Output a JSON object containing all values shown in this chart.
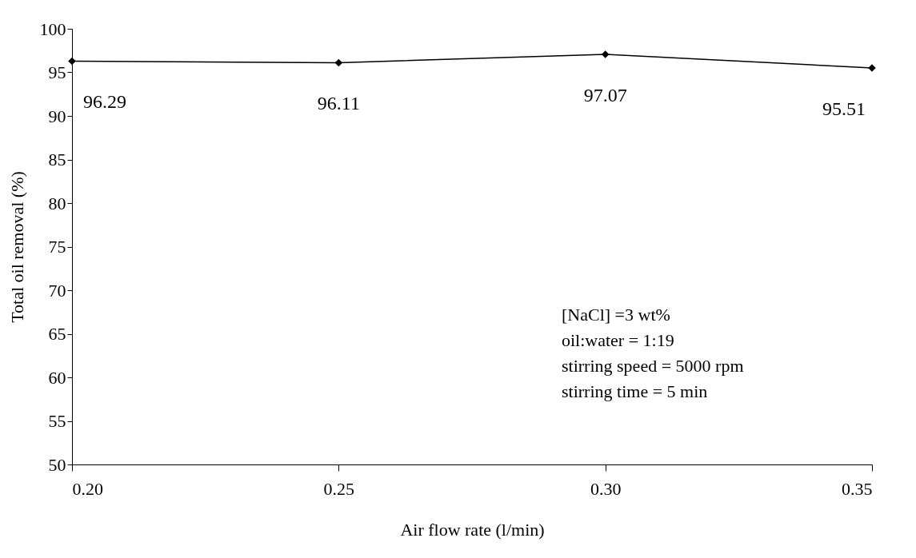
{
  "chart_data": {
    "type": "line",
    "xlabel": "Air flow rate (l/min)",
    "ylabel": "Total oil removal (%)",
    "x": [
      0.2,
      0.25,
      0.3,
      0.35
    ],
    "series": [
      {
        "color": "#000000",
        "values": [
          96.29,
          96.11,
          97.07,
          95.51
        ]
      }
    ],
    "xlim": [
      0.2,
      0.35
    ],
    "xticks": [
      {
        "value": 0.2,
        "label": "0.20"
      },
      0.25,
      {
        "value": 0.3,
        "label": "0.30"
      },
      0.35
    ],
    "ylim": [
      50,
      100
    ],
    "yticks": [
      50,
      55,
      60,
      65,
      70,
      75,
      80,
      85,
      90,
      95,
      100
    ],
    "marker": "diamond",
    "line_style": "solid",
    "grid": false,
    "data_labels": true,
    "annotations": [
      "[NaCl] =3 wt%",
      "oil:water = 1:19",
      "stirring speed = 5000 rpm",
      "stirring time = 5 min"
    ]
  }
}
